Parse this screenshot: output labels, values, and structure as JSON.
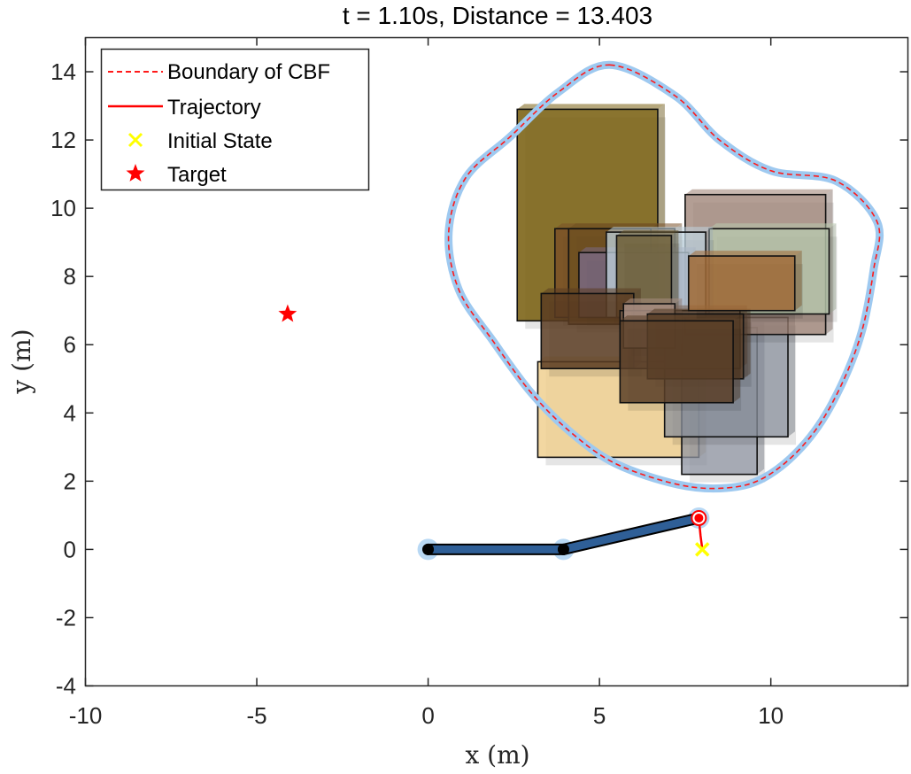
{
  "chart_data": {
    "type": "scatter",
    "title": "t = 1.10s, Distance = 13.403",
    "xlabel": "x (m)",
    "ylabel": "y (m)",
    "xlim": [
      -10,
      14
    ],
    "ylim": [
      -4,
      15
    ],
    "xticks": [
      -10,
      -5,
      0,
      5,
      10
    ],
    "yticks": [
      -4,
      -2,
      0,
      2,
      4,
      6,
      8,
      10,
      12,
      14
    ],
    "grid": false,
    "legend_position": "top-left",
    "legend": [
      {
        "label": "Boundary of CBF",
        "style": "dashed-line",
        "color": "#ff1a1a"
      },
      {
        "label": "Trajectory",
        "style": "solid-line",
        "color": "#ff0000"
      },
      {
        "label": "Initial State",
        "style": "x-marker",
        "color": "#ffff00"
      },
      {
        "label": "Target",
        "style": "star-marker",
        "color": "#ff0000"
      }
    ],
    "target": {
      "x": -4.1,
      "y": 6.9
    },
    "initial_state": {
      "x": 8.0,
      "y": 0.0
    },
    "trajectory": [
      [
        8.0,
        0.0
      ],
      [
        7.95,
        0.4
      ],
      [
        7.9,
        0.9
      ]
    ],
    "arm": {
      "joints": [
        [
          0.0,
          0.0
        ],
        [
          3.95,
          0.0
        ],
        [
          7.9,
          0.92
        ]
      ],
      "link_color": "#2f5f97",
      "joint_color": "#000000",
      "end_effector_color": "#ff0000"
    },
    "cbf_boundary": [
      [
        5.3,
        14.2
      ],
      [
        7.2,
        13.3
      ],
      [
        8.5,
        12.0
      ],
      [
        10.0,
        11.1
      ],
      [
        11.9,
        10.8
      ],
      [
        13.1,
        9.6
      ],
      [
        13.0,
        8.2
      ],
      [
        12.6,
        6.2
      ],
      [
        11.8,
        4.3
      ],
      [
        10.9,
        3.0
      ],
      [
        9.8,
        2.1
      ],
      [
        8.7,
        1.8
      ],
      [
        7.3,
        1.9
      ],
      [
        5.5,
        2.5
      ],
      [
        4.2,
        3.4
      ],
      [
        3.0,
        4.6
      ],
      [
        1.9,
        6.1
      ],
      [
        0.9,
        7.6
      ],
      [
        0.6,
        9.3
      ],
      [
        1.1,
        10.9
      ],
      [
        2.4,
        12.1
      ],
      [
        3.8,
        13.4
      ]
    ],
    "cbf_colors": {
      "outer": "#9ec9f0",
      "dashed": "#ff1a1a"
    },
    "obstacles": [
      {
        "x0": 3.2,
        "x1": 7.9,
        "y0": 2.7,
        "y1": 5.5,
        "color": "#f0d090",
        "opacity": 0.85
      },
      {
        "x0": 7.4,
        "x1": 9.6,
        "y0": 2.2,
        "y1": 6.5,
        "color": "#9096a3",
        "opacity": 0.75
      },
      {
        "x0": 6.9,
        "x1": 10.5,
        "y0": 3.3,
        "y1": 6.8,
        "color": "#8a909c",
        "opacity": 0.75
      },
      {
        "x0": 2.6,
        "x1": 6.7,
        "y0": 6.7,
        "y1": 12.9,
        "color": "#7a6112",
        "opacity": 0.88
      },
      {
        "x0": 7.5,
        "x1": 11.6,
        "y0": 6.3,
        "y1": 10.4,
        "color": "#9a7d70",
        "opacity": 0.75
      },
      {
        "x0": 8.2,
        "x1": 11.7,
        "y0": 6.9,
        "y1": 9.4,
        "color": "#b8c8ad",
        "opacity": 0.82
      },
      {
        "x0": 3.7,
        "x1": 7.2,
        "y0": 6.8,
        "y1": 9.4,
        "color": "#7a5028",
        "opacity": 0.8
      },
      {
        "x0": 4.1,
        "x1": 6.5,
        "y0": 6.6,
        "y1": 9.4,
        "color": "#6e5020",
        "opacity": 0.8
      },
      {
        "x0": 4.4,
        "x1": 7.6,
        "y0": 6.8,
        "y1": 8.7,
        "color": "#7a6a88",
        "opacity": 0.8
      },
      {
        "x0": 5.2,
        "x1": 8.1,
        "y0": 6.8,
        "y1": 9.3,
        "color": "#c0d4e0",
        "opacity": 0.75
      },
      {
        "x0": 5.5,
        "x1": 7.1,
        "y0": 6.8,
        "y1": 9.2,
        "color": "#6b5a30",
        "opacity": 0.82
      },
      {
        "x0": 3.3,
        "x1": 6.0,
        "y0": 5.3,
        "y1": 7.5,
        "color": "#5a3c22",
        "opacity": 0.85
      },
      {
        "x0": 5.6,
        "x1": 9.1,
        "y0": 5.3,
        "y1": 7.0,
        "color": "#7a6050",
        "opacity": 0.8
      },
      {
        "x0": 5.7,
        "x1": 7.2,
        "y0": 5.9,
        "y1": 7.2,
        "color": "#a88e82",
        "opacity": 0.85
      },
      {
        "x0": 6.4,
        "x1": 9.2,
        "y0": 5.0,
        "y1": 6.9,
        "color": "#5a4028",
        "opacity": 0.85
      },
      {
        "x0": 5.6,
        "x1": 8.9,
        "y0": 4.3,
        "y1": 6.7,
        "color": "#5a4028",
        "opacity": 0.85
      },
      {
        "x0": 7.6,
        "x1": 10.7,
        "y0": 7.0,
        "y1": 8.6,
        "color": "#a06a36",
        "opacity": 0.85
      }
    ]
  }
}
